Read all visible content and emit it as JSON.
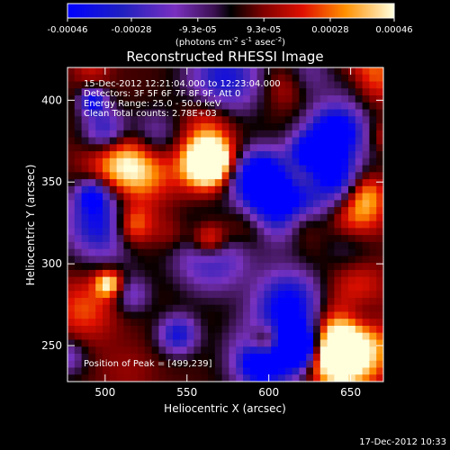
{
  "chart_data": {
    "type": "heatmap",
    "title": "Reconstructed RHESSI Image",
    "xlabel": "Heliocentric X (arcsec)",
    "ylabel": "Heliocentric Y (arcsec)",
    "xlim": [
      477,
      670
    ],
    "ylim": [
      228,
      420
    ],
    "xticks": [
      "500",
      "550",
      "600",
      "650"
    ],
    "yticks": [
      "250",
      "300",
      "350",
      "400"
    ],
    "colorbar": {
      "ticks": [
        "-0.00046",
        "-0.00028",
        "-9.3e-05",
        "9.3e-05",
        "0.00028",
        "0.00046"
      ],
      "range": [
        -0.00046,
        0.00046
      ],
      "unit_text": "(photons cm",
      "unit_exp1": "-2",
      "unit_mid": " s",
      "unit_exp2": "-1",
      "unit_mid2": " asec",
      "unit_exp3": "-2",
      "unit_end": ")"
    },
    "annotations": {
      "time": "15-Dec-2012 12:21:04.000 to 12:23:04.000",
      "detectors": "Detectors: 3F 5F 6F 7F 8F 9F, Att 0",
      "energy": "Energy Range: 25.0 - 50.0 keV",
      "clean": "Clean    Total counts: 2.78E+03",
      "peak": "Position of Peak = [499,239]"
    },
    "grid": {
      "nx": 45,
      "ny": 45
    },
    "grid_note": "Map grid values shown approximately; each cell in data units of the colorbar range"
  },
  "footer": {
    "timestamp": "17-Dec-2012 10:33"
  }
}
